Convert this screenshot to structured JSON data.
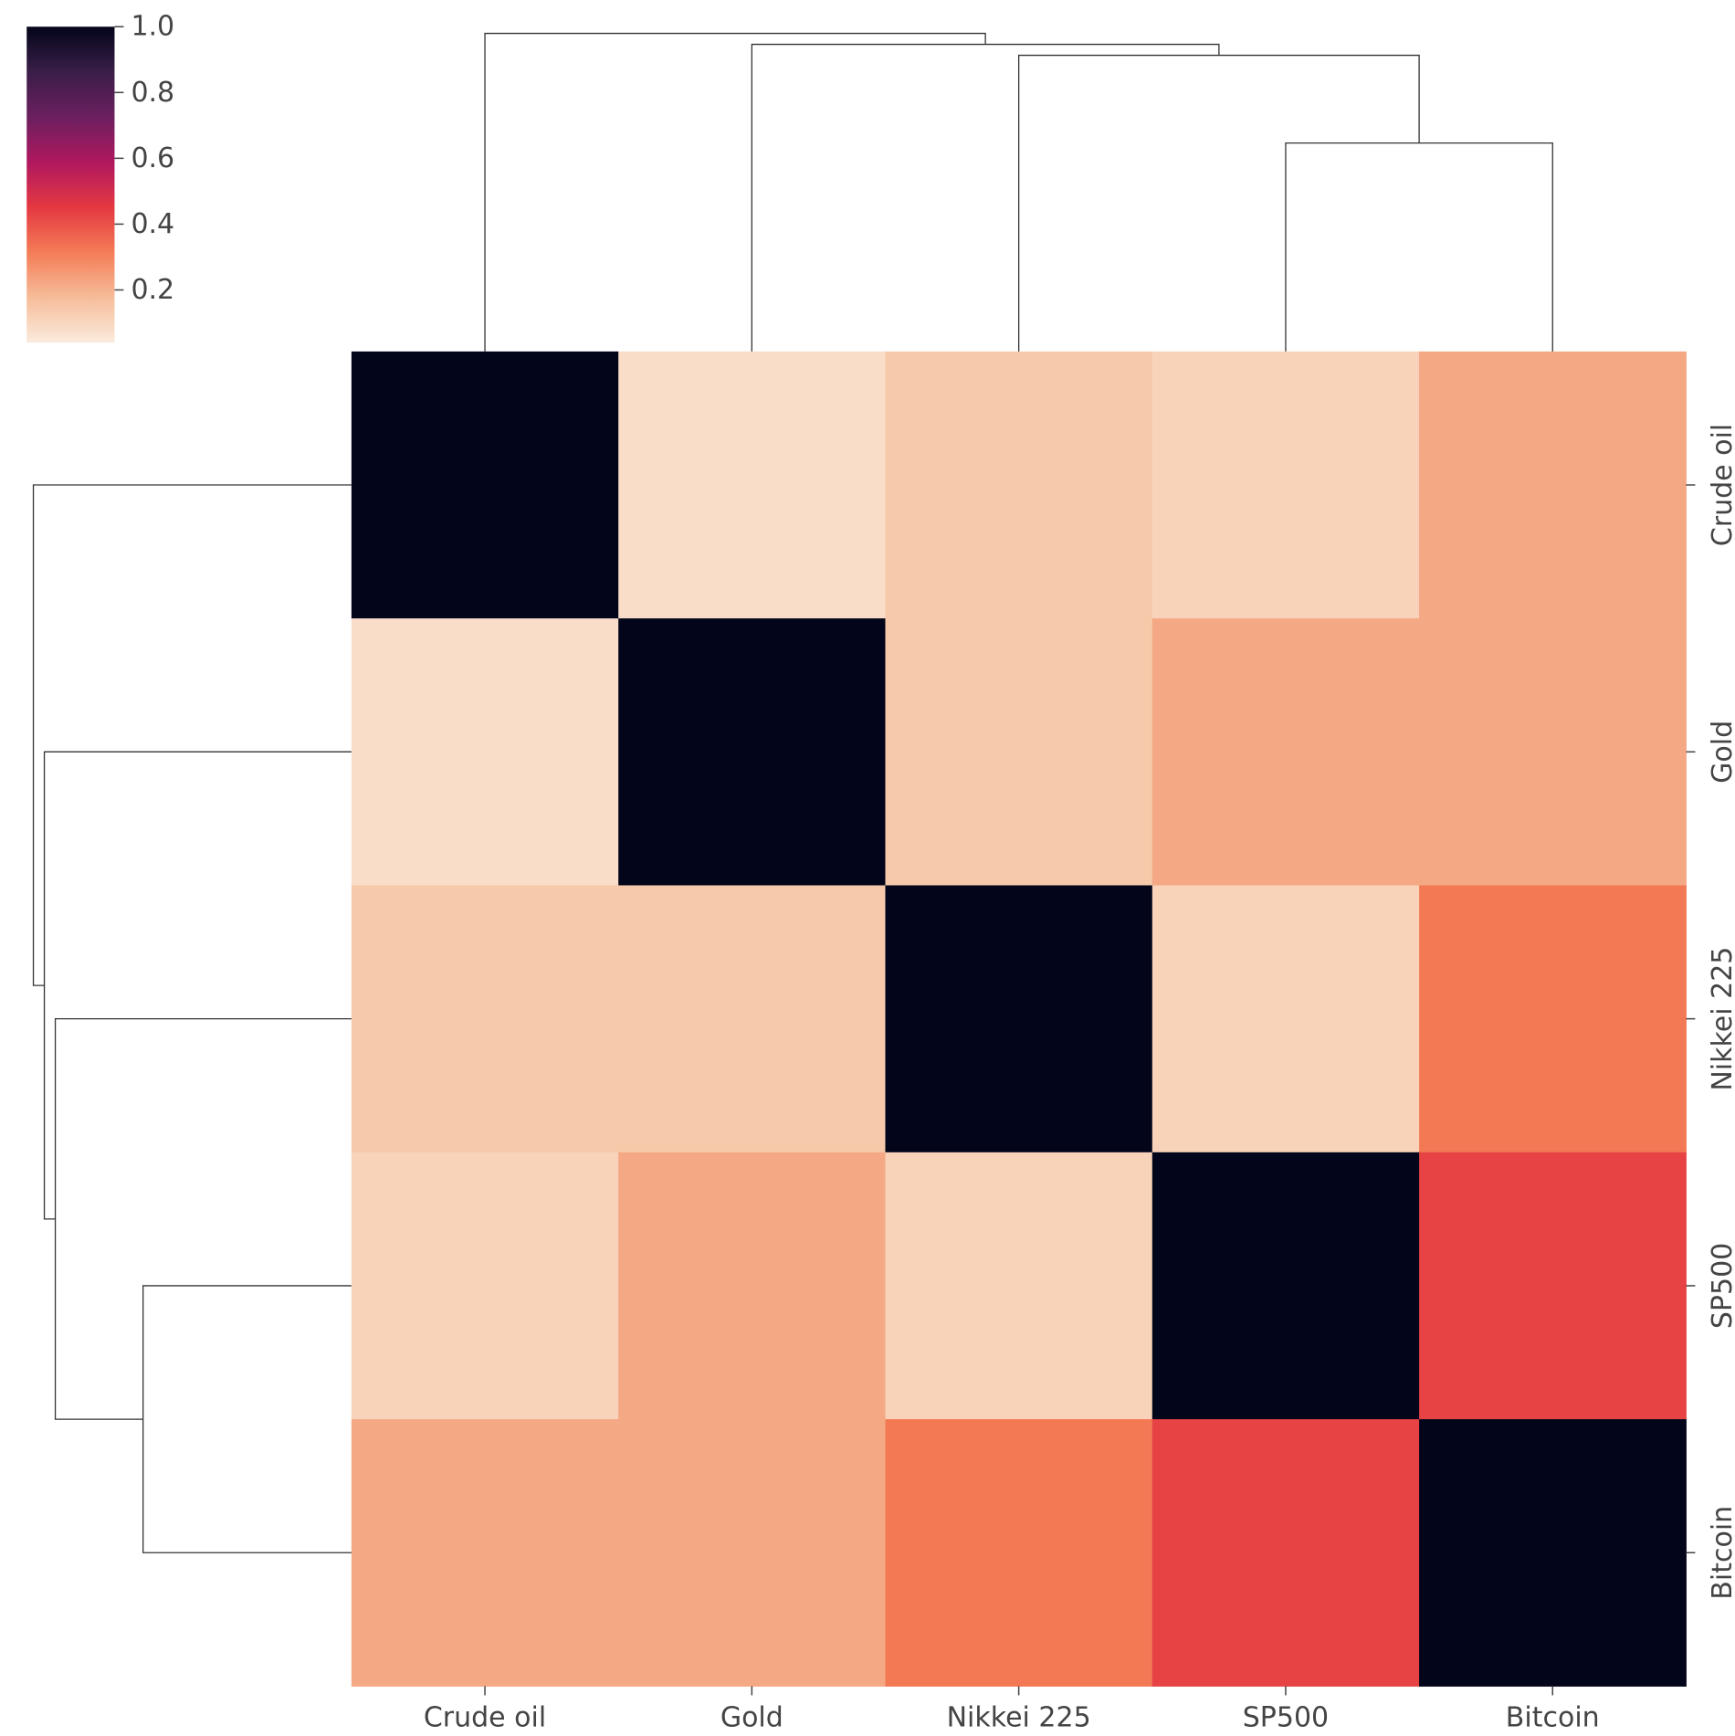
{
  "chart_data": {
    "type": "heatmap",
    "title": "",
    "xlabel": "",
    "ylabel": "",
    "labels": [
      "Crude oil",
      "Gold",
      "Nikkei 225",
      "SP500",
      "Bitcoin"
    ],
    "values": [
      [
        1.0,
        0.08,
        0.14,
        0.11,
        0.22
      ],
      [
        0.08,
        1.0,
        0.14,
        0.22,
        0.22
      ],
      [
        0.14,
        0.14,
        1.0,
        0.11,
        0.32
      ],
      [
        0.11,
        0.22,
        0.11,
        1.0,
        0.43
      ],
      [
        0.22,
        0.22,
        0.32,
        0.43,
        1.0
      ]
    ],
    "colorbar": {
      "range": [
        0.04,
        1.0
      ],
      "ticks": [
        "0.2",
        "0.4",
        "0.6",
        "0.8",
        "1.0"
      ],
      "colormap": "rocket_r",
      "colors": [
        "#faebdd",
        "#f6bc99",
        "#f47c56",
        "#e43841",
        "#b0185f",
        "#6b1f5f",
        "#3a1e48",
        "#03051a"
      ]
    },
    "dendrogram": {
      "order": [
        "Crude oil",
        "Gold",
        "Nikkei 225",
        "SP500",
        "Bitcoin"
      ],
      "merges": [
        {
          "left": "SP500",
          "right": "Bitcoin",
          "height": 0.57
        },
        {
          "left": "Nikkei 225",
          "right": "SP500+Bitcoin",
          "height": 0.81
        },
        {
          "left": "Gold",
          "right": "Nikkei 225+SP500+Bitcoin",
          "height": 0.84
        },
        {
          "left": "Crude oil",
          "right": "Gold+Nikkei 225+SP500+Bitcoin",
          "height": 0.87
        }
      ]
    }
  }
}
